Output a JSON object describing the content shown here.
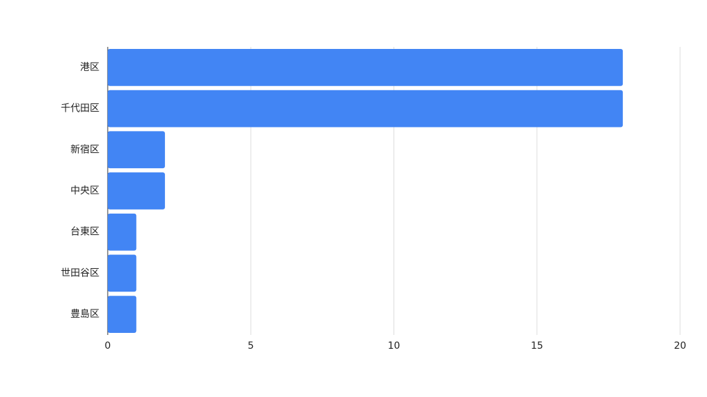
{
  "chart_data": {
    "type": "bar",
    "orientation": "horizontal",
    "categories": [
      "港区",
      "千代田区",
      "新宿区",
      "中央区",
      "台東区",
      "世田谷区",
      "豊島区"
    ],
    "values": [
      18,
      18,
      2,
      2,
      1,
      1,
      1
    ],
    "color": "#4285f4",
    "xlim": [
      0,
      20
    ],
    "xticks": [
      0,
      5,
      10,
      15,
      20
    ],
    "grid": true
  }
}
